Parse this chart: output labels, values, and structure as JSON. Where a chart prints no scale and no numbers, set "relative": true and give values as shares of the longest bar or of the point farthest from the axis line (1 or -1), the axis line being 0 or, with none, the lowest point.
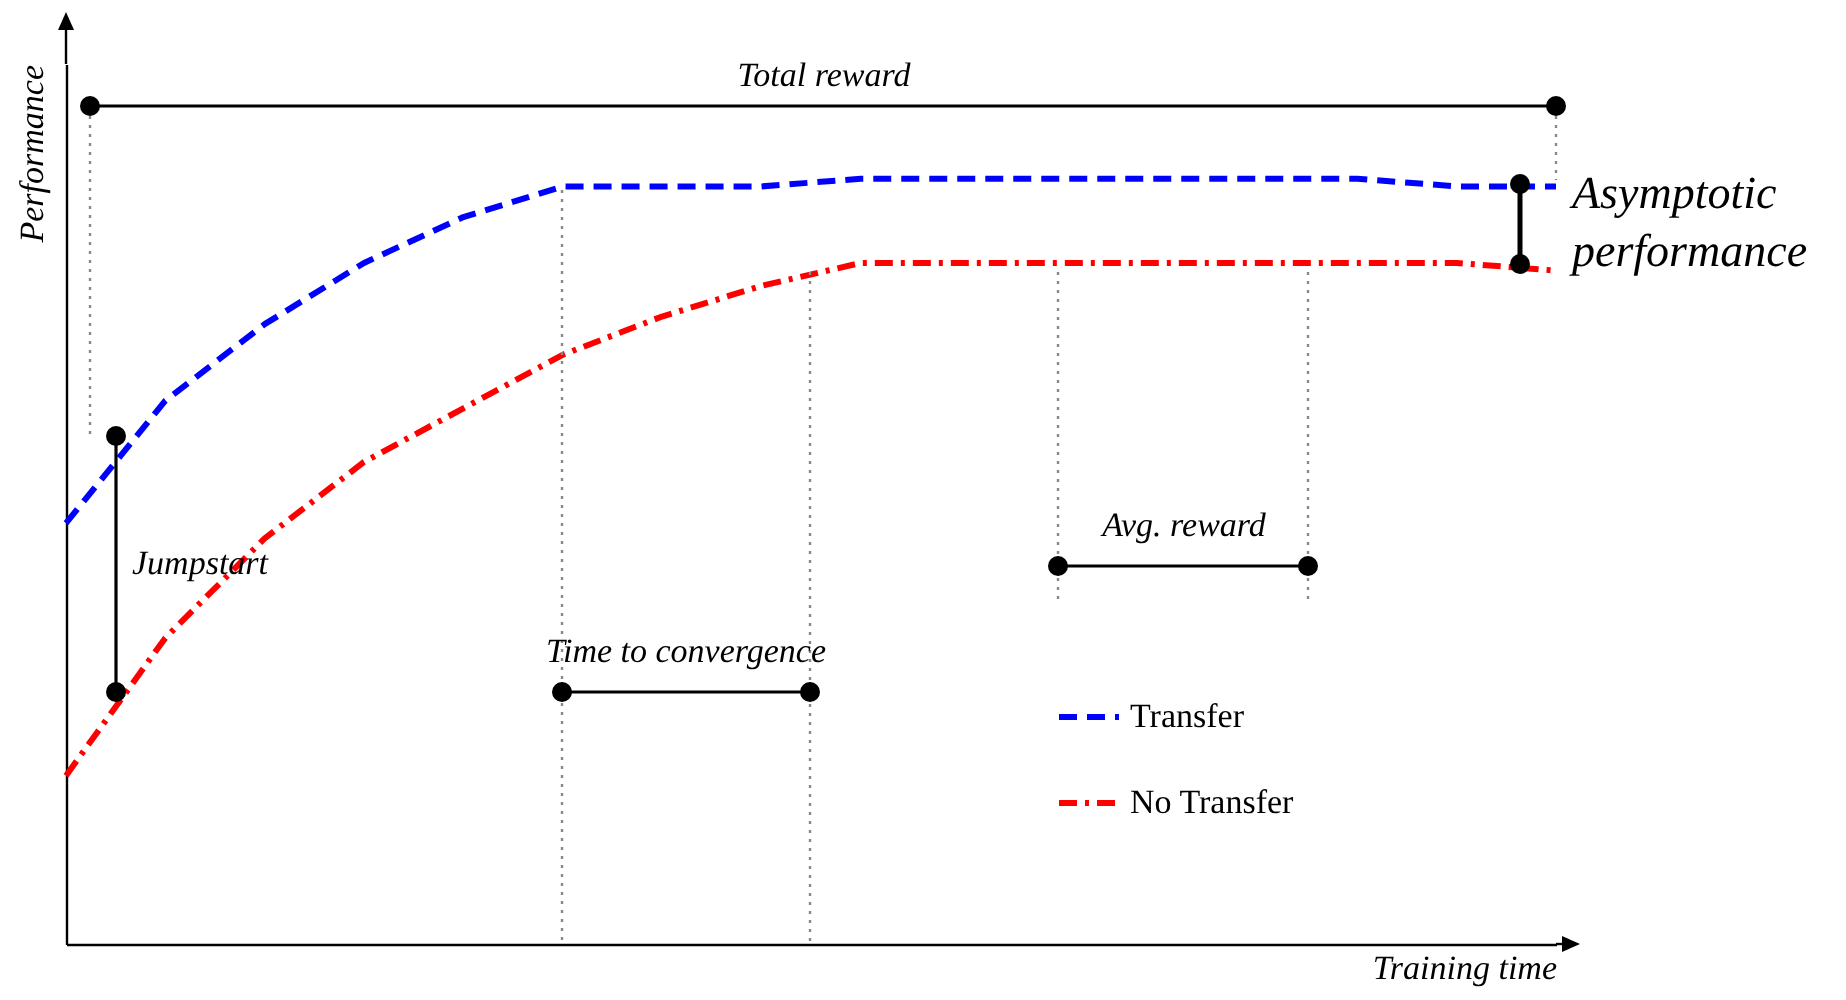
{
  "chart_data": {
    "type": "line",
    "relative": true,
    "xlabel": "Training time",
    "ylabel": "Performance",
    "categories": [
      null,
      null,
      null,
      null,
      null,
      null,
      null,
      null,
      null,
      null,
      null,
      null,
      null,
      null,
      null,
      null
    ],
    "series": [
      {
        "name": "Transfer",
        "color": "#0000ff",
        "line_style": "dashed",
        "values": [
          0.55,
          0.71,
          0.81,
          0.89,
          0.95,
          0.99,
          0.99,
          0.99,
          1.0,
          1.0,
          1.0,
          1.0,
          1.0,
          1.0,
          0.99,
          0.99
        ]
      },
      {
        "name": "No Transfer",
        "color": "#ff0000",
        "line_style": "dashdot",
        "values": [
          0.22,
          0.4,
          0.53,
          0.63,
          0.7,
          0.77,
          0.82,
          0.86,
          0.89,
          0.89,
          0.89,
          0.89,
          0.89,
          0.89,
          0.89,
          0.88
        ]
      }
    ],
    "legend": "bottom right",
    "grid": false,
    "annotations": [
      "Total reward",
      "Asymptotic performance",
      "Jumpstart",
      "Time to convergence",
      "Avg. reward"
    ]
  }
}
